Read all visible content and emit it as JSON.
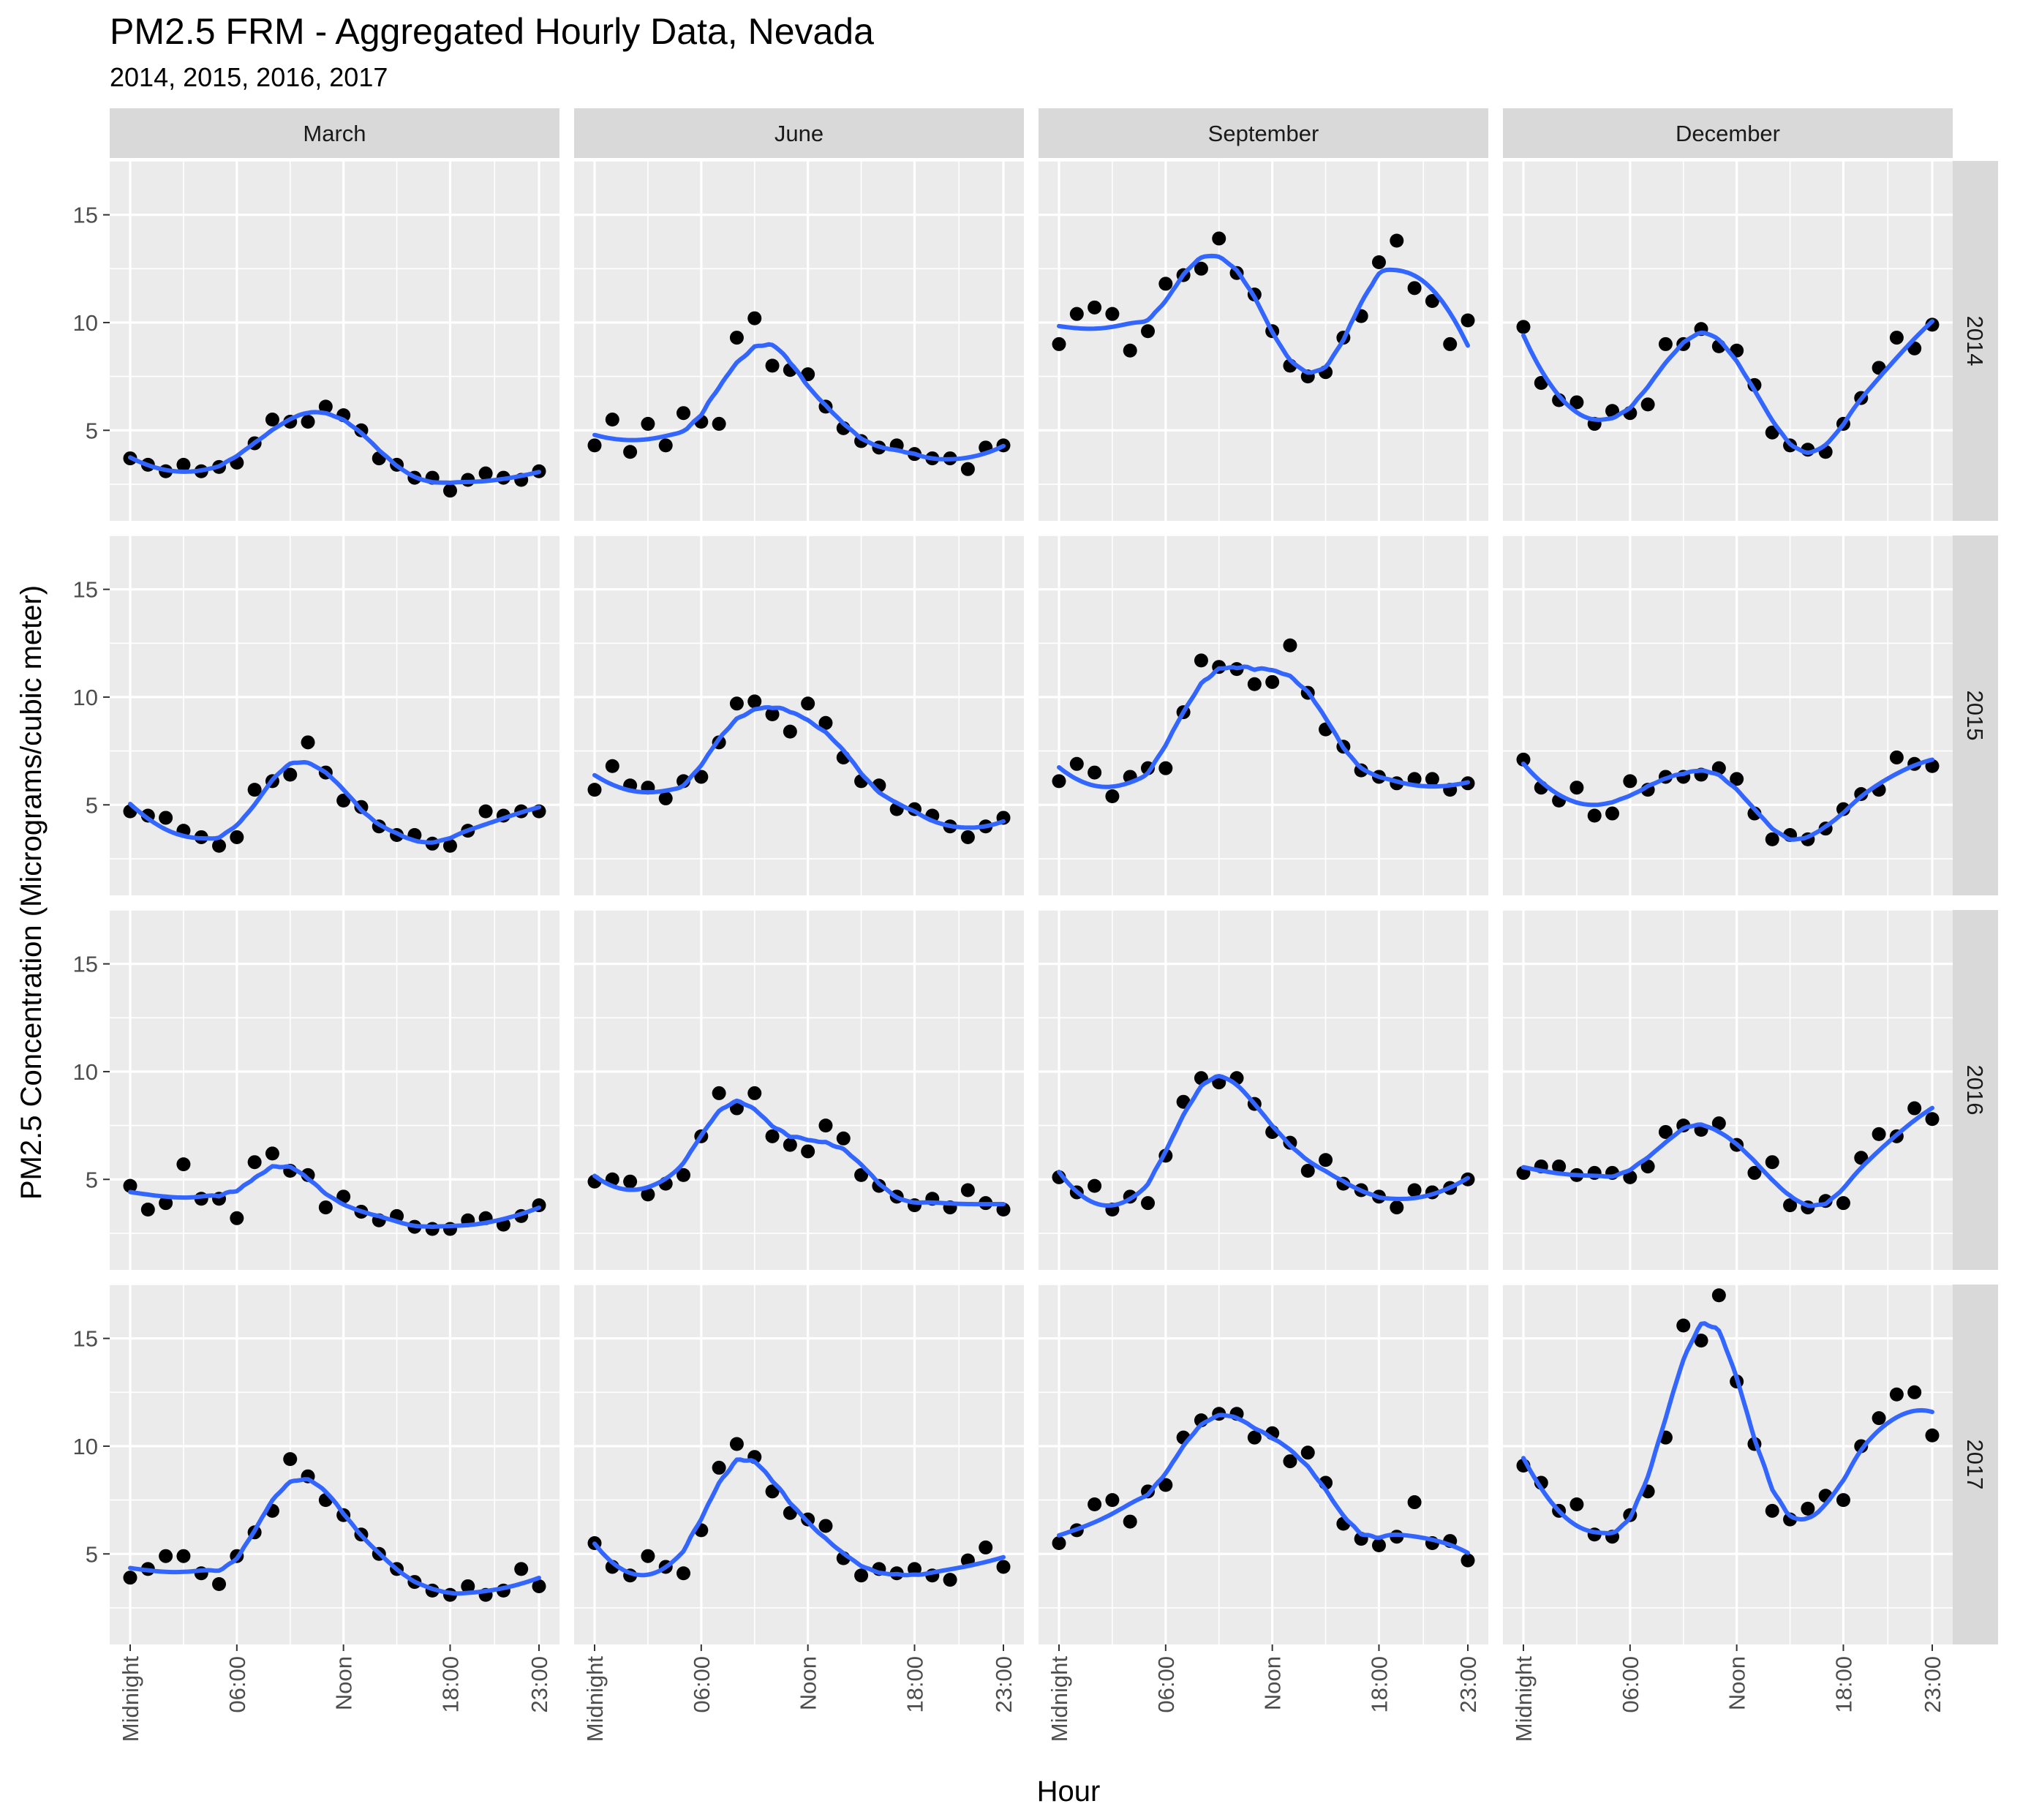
{
  "chart_data": {
    "type": "scatter",
    "title": "PM2.5 FRM - Aggregated Hourly Data, Nevada",
    "subtitle": "2014, 2015, 2016, 2017",
    "xlabel": "Hour",
    "ylabel": "PM2.5 Concentration (Micrograms/cubic meter)",
    "x_range": [
      0,
      23
    ],
    "ylim": [
      0.8,
      17.5
    ],
    "x_ticks": [
      {
        "value": 0,
        "label": "Midnight"
      },
      {
        "value": 6,
        "label": "06:00"
      },
      {
        "value": 12,
        "label": "Noon"
      },
      {
        "value": 18,
        "label": "18:00"
      },
      {
        "value": 23,
        "label": "23:00"
      }
    ],
    "y_ticks": [
      5,
      10,
      15
    ],
    "grid": true,
    "smoothing": "loess",
    "colors": {
      "panel_bg": "#ebebeb",
      "strip_bg": "#d9d9d9",
      "grid": "#ffffff",
      "points": "#000000",
      "line": "#3366ff"
    },
    "columns": [
      "March",
      "June",
      "September",
      "December"
    ],
    "rows": [
      "2014",
      "2015",
      "2016",
      "2017"
    ],
    "panels": [
      {
        "year": "2014",
        "month": "March",
        "values": [
          3.7,
          3.4,
          3.1,
          3.4,
          3.1,
          3.3,
          3.5,
          4.4,
          5.5,
          5.4,
          5.4,
          6.1,
          5.7,
          5.0,
          3.7,
          3.4,
          2.8,
          2.8,
          2.2,
          2.7,
          3.0,
          2.8,
          2.7,
          3.1
        ]
      },
      {
        "year": "2014",
        "month": "June",
        "values": [
          4.3,
          5.5,
          4.0,
          5.3,
          4.3,
          5.8,
          5.4,
          5.3,
          9.3,
          10.2,
          8.0,
          7.8,
          7.6,
          6.1,
          5.1,
          4.5,
          4.2,
          4.3,
          3.9,
          3.7,
          3.7,
          3.2,
          4.2,
          4.3
        ]
      },
      {
        "year": "2014",
        "month": "September",
        "values": [
          9.0,
          10.4,
          10.7,
          10.4,
          8.7,
          9.6,
          11.8,
          12.2,
          12.5,
          13.9,
          12.3,
          11.3,
          9.6,
          8.0,
          7.5,
          7.7,
          9.3,
          10.3,
          12.8,
          13.8,
          11.6,
          11.0,
          9.0,
          10.1
        ]
      },
      {
        "year": "2014",
        "month": "December",
        "values": [
          9.8,
          7.2,
          6.4,
          6.3,
          5.3,
          5.9,
          5.8,
          6.2,
          9.0,
          9.0,
          9.7,
          8.9,
          8.7,
          7.1,
          4.9,
          4.3,
          4.1,
          4.0,
          5.3,
          6.5,
          7.9,
          9.3,
          8.8,
          9.9
        ]
      },
      {
        "year": "2015",
        "month": "March",
        "values": [
          4.7,
          4.5,
          4.4,
          3.8,
          3.5,
          3.1,
          3.5,
          5.7,
          6.1,
          6.4,
          7.9,
          6.5,
          5.2,
          4.9,
          4.0,
          3.6,
          3.6,
          3.2,
          3.1,
          3.8,
          4.7,
          4.5,
          4.7,
          4.7
        ]
      },
      {
        "year": "2015",
        "month": "June",
        "values": [
          5.7,
          6.8,
          5.9,
          5.8,
          5.3,
          6.1,
          6.3,
          7.9,
          9.7,
          9.8,
          9.2,
          8.4,
          9.7,
          8.8,
          7.2,
          6.1,
          5.9,
          4.8,
          4.8,
          4.5,
          4.0,
          3.5,
          4.0,
          4.4
        ]
      },
      {
        "year": "2015",
        "month": "September",
        "values": [
          6.1,
          6.9,
          6.5,
          5.4,
          6.3,
          6.7,
          6.7,
          9.3,
          11.7,
          11.4,
          11.3,
          10.6,
          10.7,
          12.4,
          10.2,
          8.5,
          7.7,
          6.6,
          6.3,
          6.0,
          6.2,
          6.2,
          5.7,
          6.0
        ]
      },
      {
        "year": "2015",
        "month": "December",
        "values": [
          7.1,
          5.8,
          5.2,
          5.8,
          4.5,
          4.6,
          6.1,
          5.7,
          6.3,
          6.3,
          6.4,
          6.7,
          6.2,
          4.6,
          3.4,
          3.6,
          3.4,
          3.9,
          4.8,
          5.5,
          5.7,
          7.2,
          6.9,
          6.8
        ]
      },
      {
        "year": "2016",
        "month": "March",
        "values": [
          4.7,
          3.6,
          3.9,
          5.7,
          4.1,
          4.1,
          3.2,
          5.8,
          6.2,
          5.4,
          5.2,
          3.7,
          4.2,
          3.5,
          3.1,
          3.3,
          2.8,
          2.7,
          2.7,
          3.1,
          3.2,
          2.9,
          3.3,
          3.8
        ]
      },
      {
        "year": "2016",
        "month": "June",
        "values": [
          4.9,
          5.0,
          4.9,
          4.3,
          4.8,
          5.2,
          7.0,
          9.0,
          8.3,
          9.0,
          7.0,
          6.6,
          6.3,
          7.5,
          6.9,
          5.2,
          4.7,
          4.2,
          3.8,
          4.1,
          3.7,
          4.5,
          3.9,
          3.6
        ]
      },
      {
        "year": "2016",
        "month": "September",
        "values": [
          5.1,
          4.4,
          4.7,
          3.6,
          4.2,
          3.9,
          6.1,
          8.6,
          9.7,
          9.5,
          9.7,
          8.5,
          7.2,
          6.7,
          5.4,
          5.9,
          4.8,
          4.5,
          4.2,
          3.7,
          4.5,
          4.4,
          4.6,
          5.0
        ]
      },
      {
        "year": "2016",
        "month": "December",
        "values": [
          5.3,
          5.6,
          5.6,
          5.2,
          5.3,
          5.3,
          5.1,
          5.6,
          7.2,
          7.5,
          7.3,
          7.6,
          6.6,
          5.3,
          5.8,
          3.8,
          3.7,
          4.0,
          3.9,
          6.0,
          7.1,
          7.0,
          8.3,
          7.8
        ]
      },
      {
        "year": "2017",
        "month": "March",
        "values": [
          3.9,
          4.3,
          4.9,
          4.9,
          4.1,
          3.6,
          4.9,
          6.0,
          7.0,
          9.4,
          8.6,
          7.5,
          6.8,
          5.9,
          5.0,
          4.3,
          3.7,
          3.3,
          3.1,
          3.5,
          3.1,
          3.3,
          4.3,
          3.5
        ]
      },
      {
        "year": "2017",
        "month": "June",
        "values": [
          5.5,
          4.4,
          4.0,
          4.9,
          4.4,
          4.1,
          6.1,
          9.0,
          10.1,
          9.5,
          7.9,
          6.9,
          6.6,
          6.3,
          4.8,
          4.0,
          4.3,
          4.1,
          4.3,
          4.0,
          3.8,
          4.7,
          5.3,
          4.4
        ]
      },
      {
        "year": "2017",
        "month": "September",
        "values": [
          5.5,
          6.1,
          7.3,
          7.5,
          6.5,
          7.9,
          8.2,
          10.4,
          11.2,
          11.5,
          11.5,
          10.4,
          10.6,
          9.3,
          9.7,
          8.3,
          6.4,
          5.7,
          5.4,
          5.8,
          7.4,
          5.5,
          5.6,
          4.7
        ]
      },
      {
        "year": "2017",
        "month": "December",
        "values": [
          9.1,
          8.3,
          7.0,
          7.3,
          5.9,
          5.8,
          6.8,
          7.9,
          10.4,
          15.6,
          14.9,
          17.0,
          13.0,
          10.1,
          7.0,
          6.6,
          7.1,
          7.7,
          7.5,
          10.0,
          11.3,
          12.4,
          12.5,
          10.5
        ]
      }
    ]
  }
}
